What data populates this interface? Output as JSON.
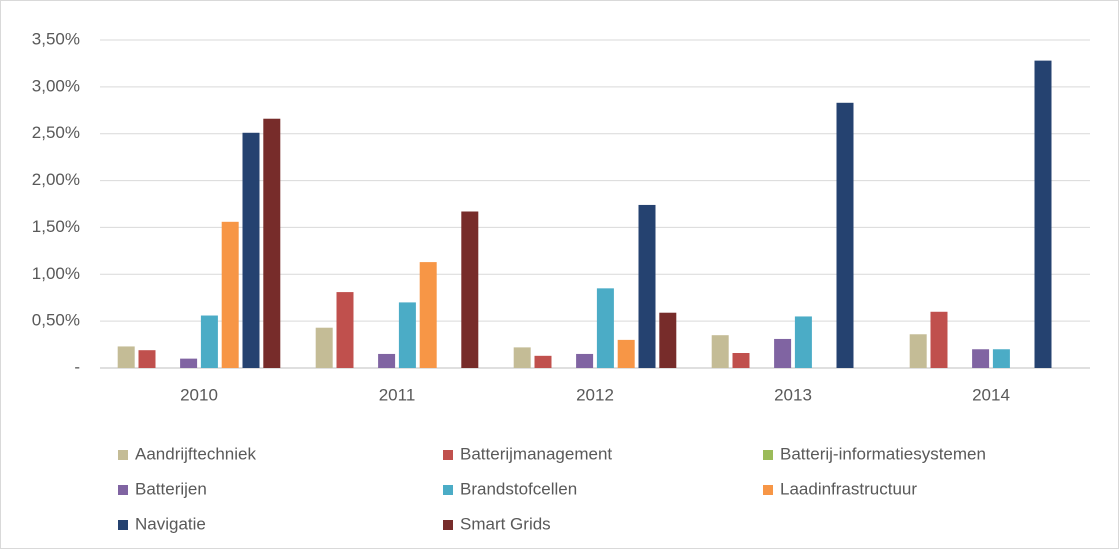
{
  "chart_data": {
    "type": "bar",
    "categories": [
      "2010",
      "2011",
      "2012",
      "2013",
      "2014"
    ],
    "series": [
      {
        "name": "Aandrijftechniek",
        "color": "#c4bc96",
        "values": [
          0.23,
          0.43,
          0.22,
          0.35,
          0.36
        ]
      },
      {
        "name": "Batterijmanagement",
        "color": "#c0504d",
        "values": [
          0.19,
          0.81,
          0.13,
          0.16,
          0.6
        ]
      },
      {
        "name": "Batterij-informatiesystemen",
        "color": "#9bbb59",
        "values": [
          0,
          0,
          0,
          0,
          0
        ]
      },
      {
        "name": "Batterijen",
        "color": "#8064a2",
        "values": [
          0.1,
          0.15,
          0.15,
          0.31,
          0.2
        ]
      },
      {
        "name": "Brandstofcellen",
        "color": "#4bacc6",
        "values": [
          0.56,
          0.7,
          0.85,
          0.55,
          0.2
        ]
      },
      {
        "name": "Laadinfrastructuur",
        "color": "#f79646",
        "values": [
          1.56,
          1.13,
          0.3,
          0,
          0
        ]
      },
      {
        "name": "Navigatie",
        "color": "#254270",
        "values": [
          2.51,
          0,
          1.74,
          2.83,
          3.28
        ]
      },
      {
        "name": "Smart Grids",
        "color": "#772c2a",
        "values": [
          2.66,
          1.67,
          0.59,
          0,
          0
        ]
      }
    ],
    "ylim": [
      0,
      3.5
    ],
    "yticks": [
      {
        "value": 0,
        "label": "-"
      },
      {
        "value": 0.5,
        "label": "0,50%"
      },
      {
        "value": 1.0,
        "label": "1,00%"
      },
      {
        "value": 1.5,
        "label": "1,50%"
      },
      {
        "value": 2.0,
        "label": "2,00%"
      },
      {
        "value": 2.5,
        "label": "2,50%"
      },
      {
        "value": 3.0,
        "label": "3,00%"
      },
      {
        "value": 3.5,
        "label": "3,50%"
      }
    ],
    "grid": true,
    "legend": "bottom"
  }
}
